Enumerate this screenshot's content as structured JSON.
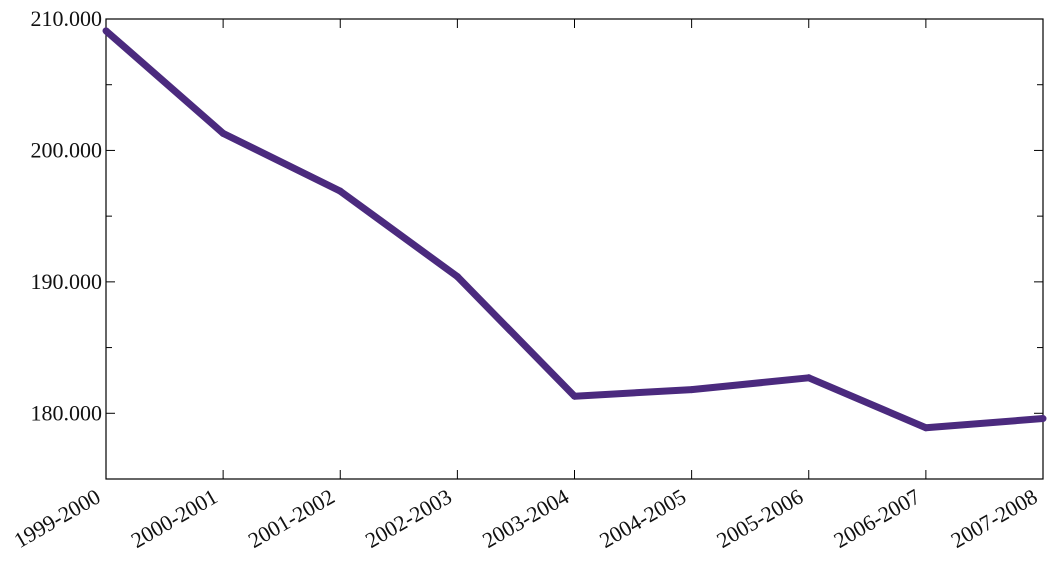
{
  "chart_data": {
    "type": "line",
    "categories": [
      "1999-2000",
      "2000-2001",
      "2001-2002",
      "2002-2003",
      "2003-2004",
      "2004-2005",
      "2005-2006",
      "2006-2007",
      "2007-2008"
    ],
    "series": [
      {
        "values": [
          209.1,
          201.3,
          196.9,
          190.4,
          181.3,
          181.8,
          182.7,
          178.9,
          179.6
        ]
      }
    ],
    "yticks": [
      {
        "value": 180,
        "label": "180.000"
      },
      {
        "value": 190,
        "label": "190.000"
      },
      {
        "value": 200,
        "label": "200.000"
      },
      {
        "value": 210,
        "label": "210.000"
      }
    ],
    "ylim": [
      175,
      210
    ],
    "title": "",
    "xlabel": "",
    "ylabel": "",
    "grid": false,
    "line_color": "#4B2A7E"
  }
}
